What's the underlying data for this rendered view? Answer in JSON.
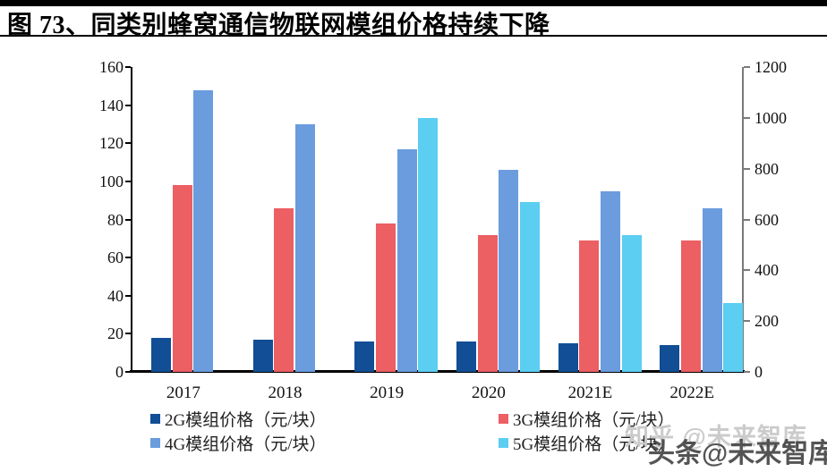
{
  "header": {
    "title": "图 73、同类别蜂窝通信物联网模组价格持续下降"
  },
  "watermarks": {
    "zhihu": "知乎 @未来智库",
    "toutiao": "头条@未来智库"
  },
  "chart_data": {
    "type": "bar",
    "title": "同类别蜂窝通信物联网模组价格持续下降",
    "categories": [
      "2017",
      "2018",
      "2019",
      "2020",
      "2021E",
      "2022E"
    ],
    "series": [
      {
        "name": "2G模组价格（元/块）",
        "short": "2g",
        "axis": "left",
        "color": "#114E95",
        "values": [
          18,
          17,
          16,
          16,
          15,
          14
        ]
      },
      {
        "name": "3G模组价格（元/块）",
        "short": "3g",
        "axis": "left",
        "color": "#EC5F63",
        "values": [
          98,
          86,
          78,
          72,
          69,
          69
        ]
      },
      {
        "name": "4G模组价格（元/块）",
        "short": "4g",
        "axis": "left",
        "color": "#6A9CDE",
        "values": [
          148,
          130,
          117,
          106,
          95,
          86
        ]
      },
      {
        "name": "5G模组价格（元/块）",
        "short": "5g",
        "axis": "right",
        "color": "#5BCEF2",
        "values": [
          null,
          null,
          1000,
          670,
          540,
          270
        ]
      }
    ],
    "left_axis": {
      "min": 0,
      "max": 160,
      "ticks": [
        0,
        20,
        40,
        60,
        80,
        100,
        120,
        140,
        160
      ]
    },
    "right_axis": {
      "min": 0,
      "max": 1200,
      "ticks": [
        0,
        200,
        400,
        600,
        800,
        1000,
        1200
      ]
    },
    "grid": false,
    "legend_position": "bottom"
  }
}
